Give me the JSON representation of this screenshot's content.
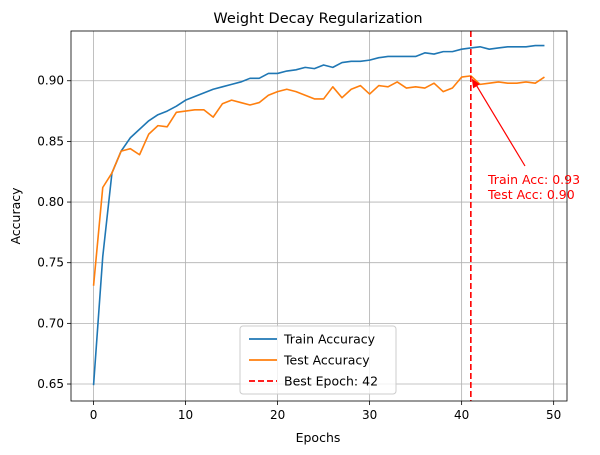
{
  "chart_data": {
    "type": "line",
    "title": "Weight Decay Regularization",
    "xlabel": "Epochs",
    "ylabel": "Accuracy",
    "xlim": [
      -2.45,
      51.45
    ],
    "ylim": [
      0.636,
      0.941
    ],
    "xticks": [
      0,
      10,
      20,
      30,
      40,
      50
    ],
    "yticks": [
      0.65,
      0.7,
      0.75,
      0.8,
      0.85,
      0.9
    ],
    "xtick_labels": [
      "0",
      "10",
      "20",
      "30",
      "40",
      "50"
    ],
    "ytick_labels": [
      "0.65",
      "0.70",
      "0.75",
      "0.80",
      "0.85",
      "0.90"
    ],
    "grid": true,
    "legend_position": "lower-center",
    "x": [
      0,
      1,
      2,
      3,
      4,
      5,
      6,
      7,
      8,
      9,
      10,
      11,
      12,
      13,
      14,
      15,
      16,
      17,
      18,
      19,
      20,
      21,
      22,
      23,
      24,
      25,
      26,
      27,
      28,
      29,
      30,
      31,
      32,
      33,
      34,
      35,
      36,
      37,
      38,
      39,
      40,
      41,
      42,
      43,
      44,
      45,
      46,
      47,
      48,
      49
    ],
    "series": [
      {
        "name": "Train Accuracy",
        "color": "#1f77b4",
        "values": [
          0.649,
          0.755,
          0.824,
          0.842,
          0.853,
          0.86,
          0.867,
          0.872,
          0.875,
          0.879,
          0.884,
          0.887,
          0.89,
          0.893,
          0.895,
          0.897,
          0.899,
          0.902,
          0.902,
          0.906,
          0.906,
          0.908,
          0.909,
          0.911,
          0.91,
          0.913,
          0.911,
          0.915,
          0.916,
          0.916,
          0.917,
          0.919,
          0.92,
          0.92,
          0.92,
          0.92,
          0.923,
          0.922,
          0.924,
          0.924,
          0.926,
          0.927,
          0.928,
          0.926,
          0.927,
          0.928,
          0.928,
          0.928,
          0.929,
          0.929
        ]
      },
      {
        "name": "Test Accuracy",
        "color": "#ff7f0e",
        "values": [
          0.731,
          0.812,
          0.824,
          0.842,
          0.844,
          0.839,
          0.856,
          0.863,
          0.862,
          0.874,
          0.875,
          0.876,
          0.876,
          0.87,
          0.881,
          0.884,
          0.882,
          0.88,
          0.882,
          0.888,
          0.891,
          0.893,
          0.891,
          0.888,
          0.885,
          0.885,
          0.895,
          0.886,
          0.893,
          0.896,
          0.889,
          0.896,
          0.895,
          0.899,
          0.894,
          0.895,
          0.894,
          0.898,
          0.891,
          0.894,
          0.903,
          0.904,
          0.897,
          0.898,
          0.899,
          0.898,
          0.898,
          0.899,
          0.898,
          0.903
        ]
      }
    ],
    "best_epoch": {
      "x": 41,
      "label": "Best Epoch: 42",
      "color": "#ff0000"
    },
    "annotation": {
      "point": [
        41,
        0.903
      ],
      "text_anchor": [
        43.2,
        0.818
      ],
      "lines": [
        "Train Acc: 0.93",
        "Test Acc: 0.90"
      ],
      "color": "#ff0000"
    },
    "legend": [
      {
        "label": "Train Accuracy",
        "color": "#1f77b4",
        "style": "solid"
      },
      {
        "label": "Test Accuracy",
        "color": "#ff7f0e",
        "style": "solid"
      },
      {
        "label": "Best Epoch: 42",
        "color": "#ff0000",
        "style": "dashed"
      }
    ]
  }
}
